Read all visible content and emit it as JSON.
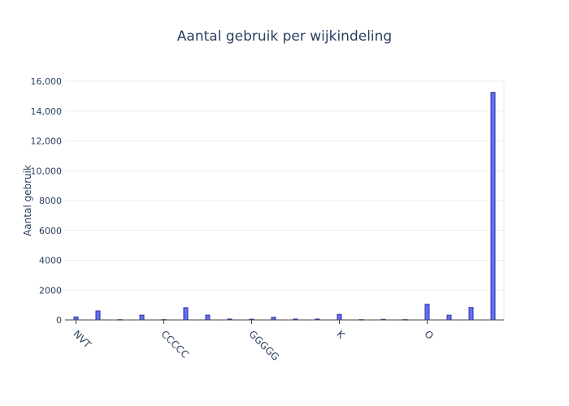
{
  "chart_data": {
    "type": "bar",
    "title": "Aantal gebruik per wijkindeling",
    "xlabel": "",
    "ylabel": "Aantal gebruik",
    "ylim": [
      0,
      16000
    ],
    "yticks": [
      0,
      2000,
      4000,
      6000,
      8000,
      10000,
      12000,
      14000,
      16000
    ],
    "ytick_labels": [
      "0",
      "2000",
      "4000",
      "6000",
      "8000",
      "10,000",
      "12,000",
      "14,000",
      "16,000"
    ],
    "x_tick_labels": [
      "NVT",
      "CCCCC",
      "GGGGG",
      "K",
      "O"
    ],
    "x_tick_positions": [
      0,
      4,
      8,
      12,
      16
    ],
    "values": [
      200,
      600,
      20,
      320,
      20,
      820,
      320,
      60,
      50,
      180,
      60,
      60,
      370,
      20,
      40,
      20,
      1050,
      320,
      830,
      15250
    ],
    "colors": {
      "bar_fill": "#636efa",
      "bar_stroke": "#2c2f9a",
      "text": "#2a3f5f"
    },
    "grid": true
  }
}
